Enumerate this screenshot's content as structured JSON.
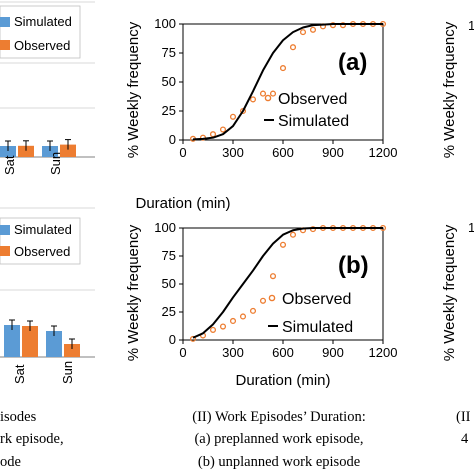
{
  "chart_data": [
    {
      "type": "bar",
      "panel": "left-top",
      "categories": [
        "Sat",
        "Sun"
      ],
      "series": [
        {
          "name": "Simulated",
          "color": "#5b9bd5",
          "values": [
            5.5,
            5.5
          ]
        },
        {
          "name": "Observed",
          "color": "#ed7d31",
          "values": [
            5.6,
            6.2
          ]
        }
      ],
      "legend": [
        "Simulated",
        "Observed"
      ]
    },
    {
      "type": "bar",
      "panel": "left-bottom",
      "categories": [
        "Sat",
        "Sun"
      ],
      "series": [
        {
          "name": "Simulated",
          "color": "#5b9bd5",
          "values": [
            16,
            13
          ]
        },
        {
          "name": "Observed",
          "color": "#ed7d31",
          "values": [
            15.5,
            6.5
          ]
        }
      ],
      "legend": [
        "Simulated",
        "Observed"
      ]
    },
    {
      "type": "line",
      "panel_label": "(a)",
      "xlabel": "Duration (min)",
      "ylabel": "% Weekly frequency",
      "xlim": [
        0,
        1200
      ],
      "ylim": [
        0,
        100
      ],
      "xticks": [
        0,
        300,
        600,
        900,
        1200
      ],
      "yticks": [
        0,
        25,
        50,
        75,
        100
      ],
      "series": [
        {
          "name": "Observed",
          "style": "markers",
          "color": "#ed7d31",
          "x": [
            60,
            120,
            180,
            240,
            300,
            360,
            420,
            480,
            540,
            600,
            660,
            720,
            780,
            840,
            900,
            960,
            1020,
            1080,
            1140,
            1200
          ],
          "y": [
            1,
            2,
            5,
            9,
            20,
            25,
            35,
            40,
            40,
            62,
            80,
            93,
            95,
            98,
            99,
            99,
            100,
            100,
            100,
            100
          ]
        },
        {
          "name": "Simulated",
          "style": "line",
          "color": "#000000",
          "x": [
            60,
            120,
            180,
            240,
            300,
            360,
            420,
            480,
            540,
            600,
            660,
            720,
            780,
            840,
            900,
            960,
            1020,
            1080,
            1140,
            1200
          ],
          "y": [
            0.5,
            1,
            2,
            5,
            12,
            25,
            42,
            60,
            75,
            86,
            93,
            97,
            99,
            99.5,
            100,
            100,
            100,
            100,
            100,
            100
          ]
        }
      ],
      "legend": [
        "Observed",
        "Simulated"
      ]
    },
    {
      "type": "line",
      "panel_label": "(b)",
      "xlabel": "Duration (min)",
      "ylabel": "% Weekly frequency",
      "xlim": [
        0,
        1200
      ],
      "ylim": [
        0,
        100
      ],
      "xticks": [
        0,
        300,
        600,
        900,
        1200
      ],
      "yticks": [
        0,
        25,
        50,
        75,
        100
      ],
      "series": [
        {
          "name": "Observed",
          "style": "markers",
          "color": "#ed7d31",
          "x": [
            60,
            120,
            180,
            240,
            300,
            360,
            420,
            480,
            540,
            600,
            660,
            720,
            780,
            840,
            900,
            960,
            1020,
            1080,
            1140,
            1200
          ],
          "y": [
            1,
            4,
            9,
            12,
            17,
            21,
            26,
            35,
            57,
            85,
            94,
            98,
            99,
            100,
            100,
            100,
            100,
            100,
            100,
            100
          ]
        },
        {
          "name": "Simulated",
          "style": "line",
          "color": "#000000",
          "x": [
            60,
            120,
            180,
            240,
            300,
            360,
            420,
            480,
            540,
            600,
            660,
            720,
            780,
            840,
            900,
            960,
            1020,
            1080,
            1140,
            1200
          ],
          "y": [
            2,
            6,
            14,
            25,
            38,
            50,
            62,
            75,
            86,
            94,
            98,
            99.5,
            100,
            100,
            100,
            100,
            100,
            100,
            100,
            100
          ]
        }
      ],
      "legend": [
        "Observed",
        "Simulated"
      ]
    },
    {
      "type": "line",
      "panel": "right-partial",
      "ytick_visible": [
        "1",
        "1"
      ]
    }
  ],
  "captions": {
    "left": [
      "isodes",
      "rk episode,",
      "ode"
    ],
    "center": [
      "(II) Work Episodes’ Duration:",
      "(a) preplanned work episode,",
      "(b) unplanned work episode"
    ],
    "right": [
      "(II",
      "4"
    ]
  }
}
